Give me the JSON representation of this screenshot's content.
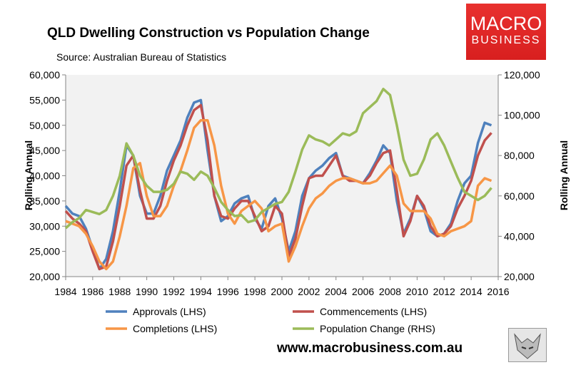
{
  "header": {
    "title": "QLD Dwelling Construction vs Population Change",
    "source": "Source: Australian Bureau of Statistics"
  },
  "logo": {
    "line1": "MACRO",
    "line2": "BUSINESS",
    "color": "#e02a28"
  },
  "footer": {
    "url": "www.macrobusiness.com.au"
  },
  "chart_data": {
    "type": "line",
    "title": "QLD Dwelling Construction vs Population Change",
    "ylabel": "Rolling Annual",
    "y2label": "Rolling Annual",
    "ylim": [
      20000,
      60000
    ],
    "y2lim": [
      20000,
      120000
    ],
    "xlim": [
      1984,
      2016
    ],
    "yticks": [
      "20,000",
      "25,000",
      "30,000",
      "35,000",
      "40,000",
      "45,000",
      "50,000",
      "55,000",
      "60,000"
    ],
    "y2ticks": [
      "20,000",
      "40,000",
      "60,000",
      "80,000",
      "100,000",
      "120,000"
    ],
    "xticks": [
      "1984",
      "1986",
      "1988",
      "1990",
      "1992",
      "1994",
      "1996",
      "1998",
      "2000",
      "2002",
      "2004",
      "2006",
      "2008",
      "2010",
      "2012",
      "2014",
      "2016"
    ],
    "grid": false,
    "legend": "bottom",
    "x_start": 1984,
    "x_step_years": 0.5,
    "series": [
      {
        "name": "Approvals (LHS)",
        "axis": "left",
        "color": "#4f81bd",
        "values": [
          34000,
          32500,
          32000,
          29500,
          25500,
          21500,
          23500,
          29000,
          37000,
          46000,
          44000,
          36000,
          32500,
          32500,
          36000,
          41000,
          44000,
          47000,
          51500,
          54500,
          55000,
          45000,
          36000,
          31000,
          32000,
          34500,
          35500,
          36000,
          31500,
          29500,
          34000,
          35500,
          31500,
          25000,
          29000,
          36000,
          39500,
          41000,
          42000,
          43500,
          44500,
          40000,
          39500,
          39000,
          38500,
          40500,
          43000,
          46000,
          44500,
          35000,
          28500,
          31500,
          36000,
          33500,
          29000,
          28000,
          28500,
          30500,
          35000,
          38500,
          40000,
          46500,
          50500,
          50000
        ]
      },
      {
        "name": "Commencements (LHS)",
        "axis": "left",
        "color": "#c0504d",
        "values": [
          33000,
          31500,
          30500,
          29000,
          25000,
          21500,
          22000,
          27000,
          34000,
          42000,
          44000,
          37000,
          31500,
          31500,
          34000,
          39000,
          43000,
          46000,
          50000,
          53000,
          54000,
          47000,
          36000,
          32000,
          31500,
          33500,
          35000,
          35000,
          32000,
          29000,
          30000,
          34000,
          32500,
          24000,
          27500,
          34000,
          39500,
          40000,
          40000,
          42000,
          44000,
          40000,
          39000,
          39000,
          38500,
          40000,
          42500,
          44500,
          45000,
          37000,
          28000,
          31000,
          36000,
          34000,
          30000,
          28000,
          28500,
          30000,
          33500,
          36000,
          39000,
          44000,
          47000,
          48500
        ]
      },
      {
        "name": "Completions (LHS)",
        "axis": "left",
        "color": "#f79646",
        "values": [
          31000,
          30500,
          30000,
          28500,
          26000,
          23000,
          21500,
          23000,
          28000,
          34000,
          41500,
          42500,
          36000,
          32000,
          32000,
          34000,
          38000,
          41000,
          45000,
          49500,
          51000,
          51000,
          46000,
          38000,
          32500,
          30500,
          33000,
          34000,
          35000,
          33500,
          29000,
          30000,
          30500,
          23000,
          26000,
          30000,
          33500,
          35500,
          36500,
          38000,
          39000,
          39500,
          39500,
          39000,
          38500,
          38500,
          39000,
          40500,
          42000,
          40000,
          34500,
          33000,
          33000,
          33000,
          31500,
          28500,
          28000,
          29000,
          29500,
          30000,
          31000,
          38000,
          39500,
          39000
        ]
      },
      {
        "name": "Population Change (RHS)",
        "axis": "right",
        "color": "#9bbb59",
        "values": [
          44000,
          47000,
          49000,
          53000,
          52000,
          51000,
          53000,
          60000,
          70000,
          86000,
          80000,
          70000,
          65000,
          62000,
          62000,
          63000,
          66000,
          72000,
          71000,
          68000,
          72000,
          70000,
          64000,
          57000,
          53000,
          50000,
          50500,
          47000,
          48000,
          52000,
          54000,
          56000,
          57000,
          62000,
          72000,
          83000,
          90000,
          88000,
          87000,
          85000,
          88000,
          91000,
          90000,
          92000,
          101000,
          104000,
          107000,
          113000,
          110000,
          95000,
          78000,
          70000,
          71000,
          78000,
          88000,
          91000,
          85000,
          77000,
          69000,
          62000,
          60000,
          58000,
          60000,
          64000
        ]
      }
    ]
  }
}
